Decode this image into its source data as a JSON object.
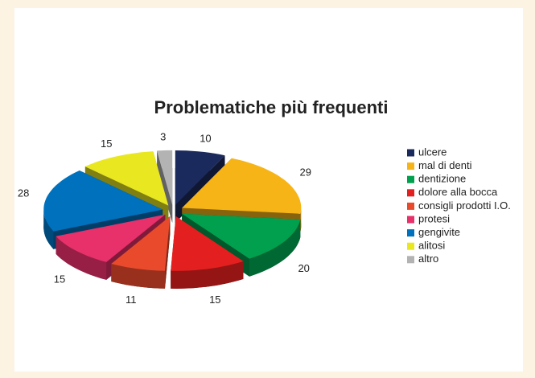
{
  "chart_data": {
    "type": "pie3d",
    "title": "Problematiche più frequenti",
    "categories": [
      "ulcere",
      "mal di denti",
      "dentizione",
      "dolore alla bocca",
      "consigli prodotti I.O.",
      "protesi",
      "gengivite",
      "alitosi",
      "altro"
    ],
    "values": [
      10,
      29,
      20,
      15,
      11,
      15,
      28,
      15,
      3
    ],
    "colors": [
      "#1b2a5c",
      "#f7b417",
      "#00a04e",
      "#e3201f",
      "#ea4a2c",
      "#e8306b",
      "#0071bd",
      "#e9e71f",
      "#b3b3b3"
    ],
    "legend": "right"
  }
}
